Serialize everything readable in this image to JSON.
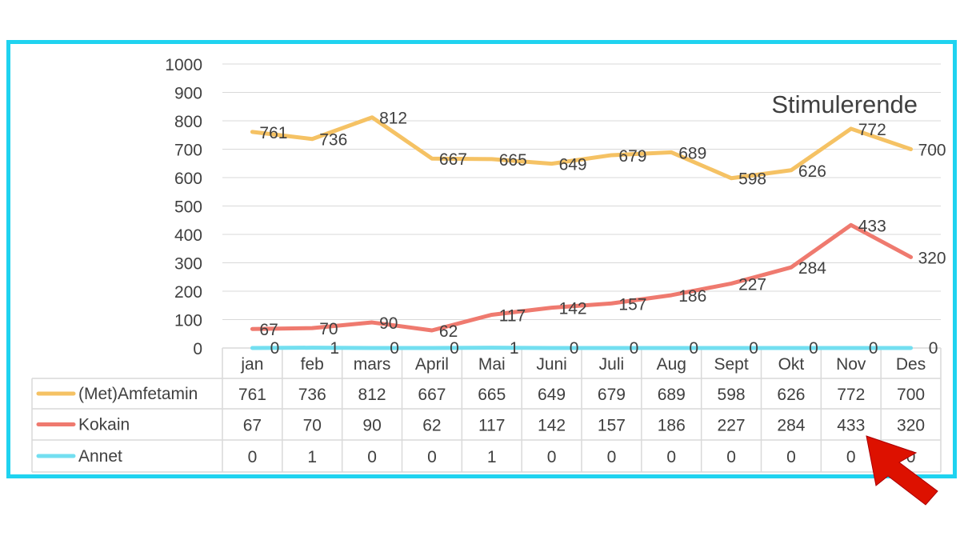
{
  "chart_data": {
    "type": "line",
    "title": "Stimulerende",
    "categories": [
      "jan",
      "feb",
      "mars",
      "April",
      "Mai",
      "Juni",
      "Juli",
      "Aug",
      "Sept",
      "Okt",
      "Nov",
      "Des"
    ],
    "ylim": [
      0,
      1000
    ],
    "yticks": [
      0,
      100,
      200,
      300,
      400,
      500,
      600,
      700,
      800,
      900,
      1000
    ],
    "grid": true,
    "legend": "data-table",
    "series": [
      {
        "name": "(Met)Amfetamin",
        "color": "#f5c264",
        "values": [
          761,
          736,
          812,
          667,
          665,
          649,
          679,
          689,
          598,
          626,
          772,
          700
        ]
      },
      {
        "name": "Kokain",
        "color": "#ef7a6f",
        "values": [
          67,
          70,
          90,
          62,
          117,
          142,
          157,
          186,
          227,
          284,
          433,
          320
        ]
      },
      {
        "name": "Annet",
        "color": "#73dff0",
        "values": [
          0,
          1,
          0,
          0,
          1,
          0,
          0,
          0,
          0,
          0,
          0,
          0
        ]
      }
    ]
  },
  "colors": {
    "frame_border": "#1fd3f0",
    "arrow": "#dd1100",
    "gridline": "#d9d9d9"
  },
  "annotation_icon": "red-arrow-pointing-to-Nov-Kokain"
}
